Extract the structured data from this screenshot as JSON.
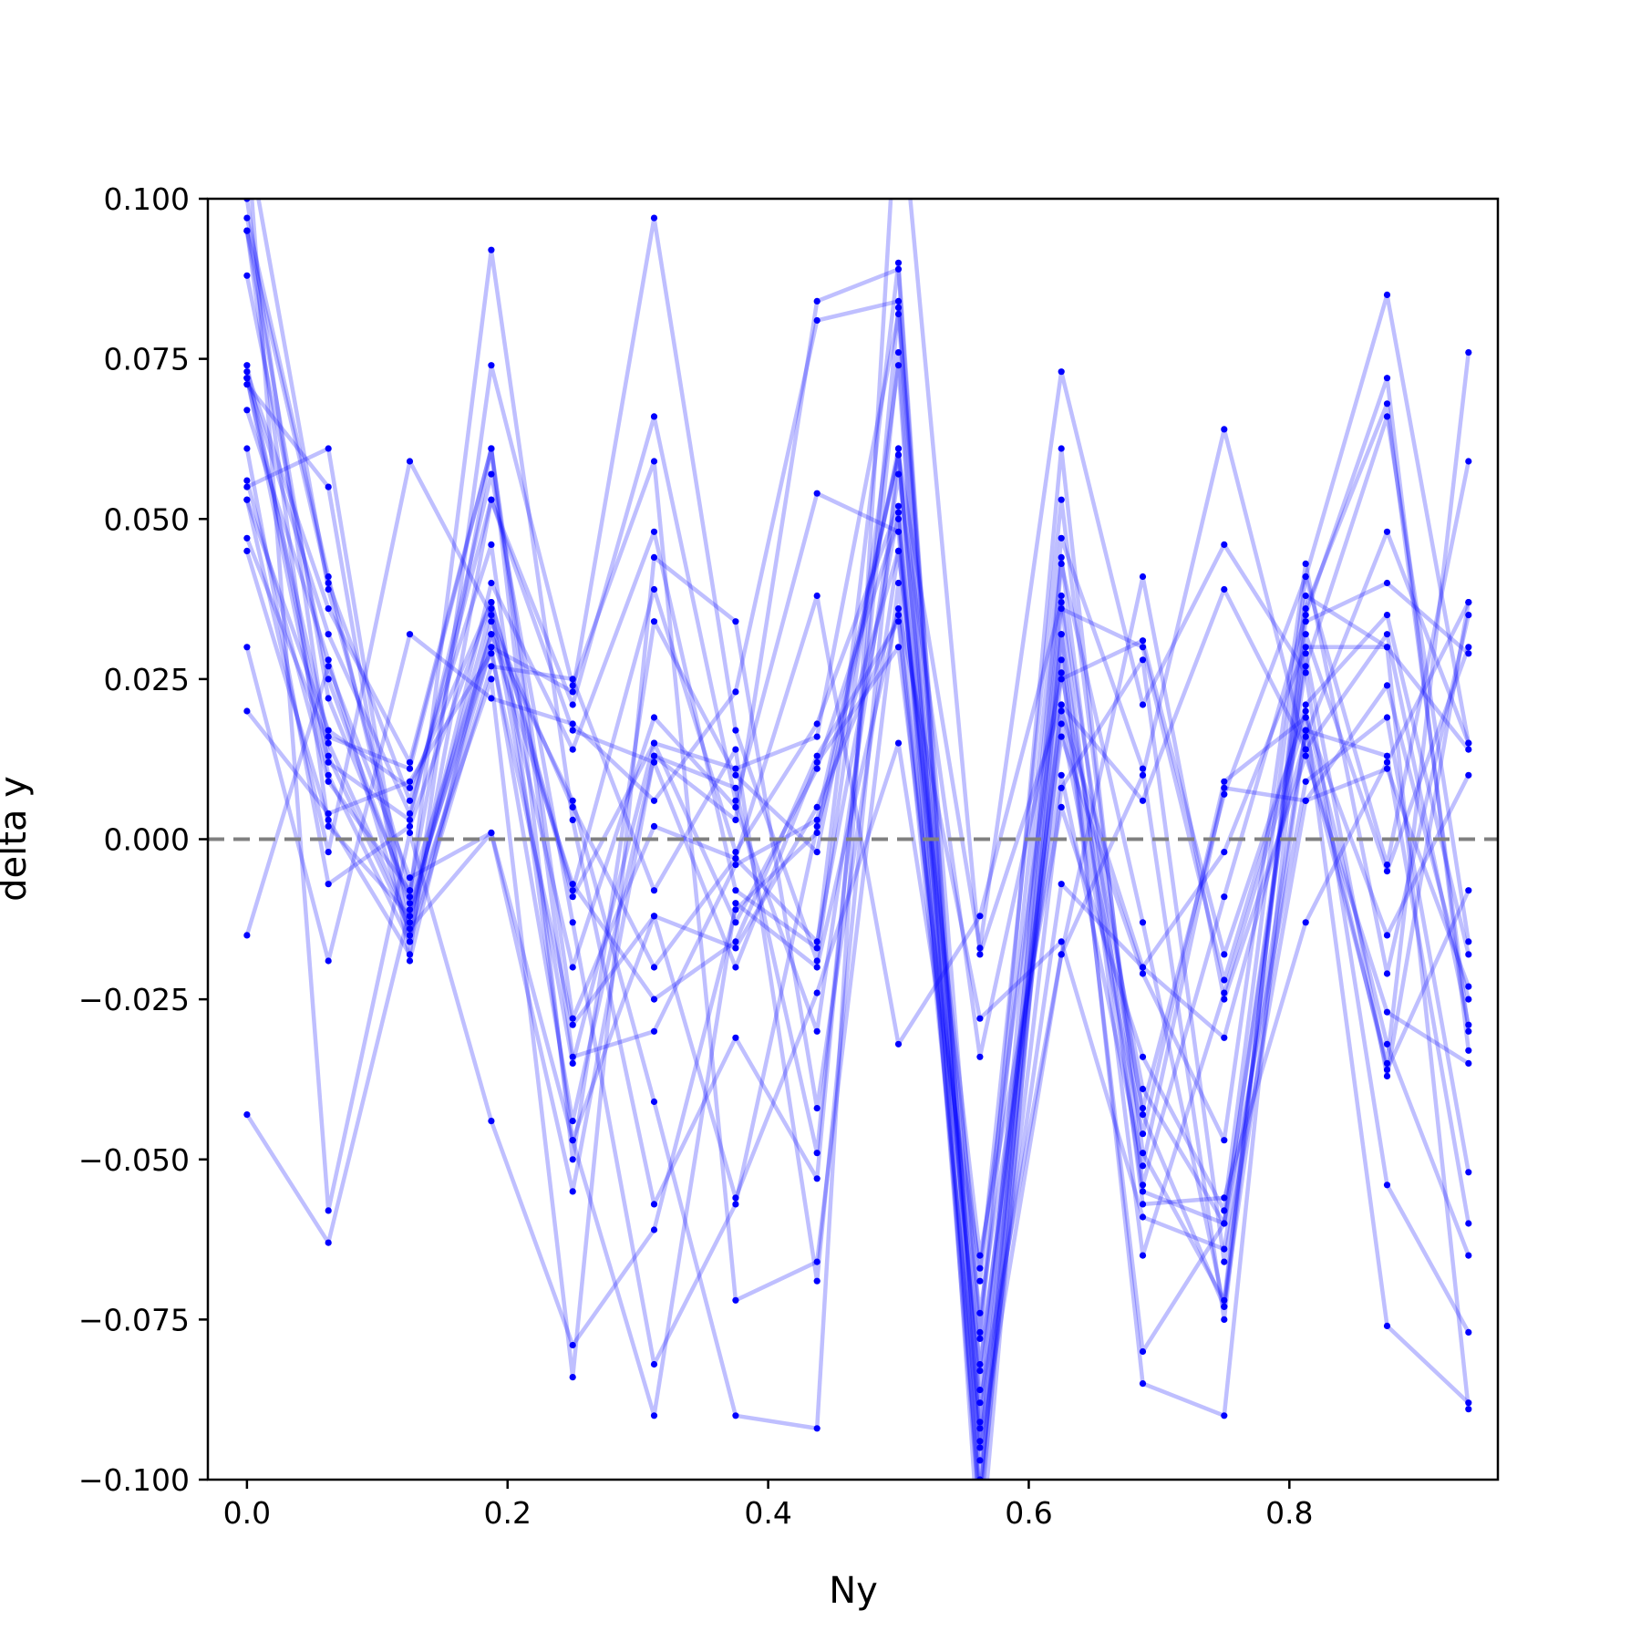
{
  "chart_data": {
    "type": "line",
    "xlabel": "Ny",
    "ylabel": "delta y",
    "xlim": [
      -0.03,
      0.96
    ],
    "ylim": [
      -0.1,
      0.1
    ],
    "x_ticks": [
      "0.0",
      "0.2",
      "0.4",
      "0.6",
      "0.8"
    ],
    "x_tick_values": [
      0.0,
      0.2,
      0.4,
      0.6,
      0.8
    ],
    "y_ticks": [
      "0.100",
      "0.075",
      "0.050",
      "0.025",
      "0.000",
      "−0.025",
      "−0.050",
      "−0.075",
      "−0.100"
    ],
    "y_tick_values": [
      0.1,
      0.075,
      0.05,
      0.025,
      0.0,
      -0.025,
      -0.05,
      -0.075,
      -0.1
    ],
    "reference_line": {
      "y": 0.0,
      "style": "dashed",
      "color": "#808080"
    },
    "grid": false,
    "line_color": "#0000ff",
    "line_alpha": 0.25,
    "marker_color": "#0000ff",
    "x": [
      0.0,
      0.0625,
      0.125,
      0.1875,
      0.25,
      0.3125,
      0.375,
      0.4375,
      0.5,
      0.5625,
      0.625,
      0.6875,
      0.75,
      0.8125,
      0.875,
      0.9375
    ],
    "series": [
      {
        "values": [
          0.097,
          0.041,
          -0.012,
          0.036,
          -0.035,
          0.015,
          0.011,
          0.016,
          0.082,
          -0.097,
          0.038,
          -0.043,
          -0.073,
          0.036,
          0.068,
          -0.03
        ]
      },
      {
        "values": [
          0.088,
          0.025,
          -0.01,
          0.03,
          0.023,
          0.097,
          0.017,
          -0.019,
          0.074,
          -0.113,
          0.032,
          -0.055,
          -0.06,
          0.027,
          0.066,
          -0.016
        ]
      },
      {
        "values": [
          0.073,
          0.036,
          0.012,
          0.061,
          -0.034,
          -0.03,
          -0.004,
          0.003,
          0.06,
          -0.078,
          0.047,
          0.011,
          -0.075,
          0.038,
          0.03,
          -0.089
        ]
      },
      {
        "values": [
          0.055,
          0.061,
          -0.016,
          0.053,
          0.021,
          0.066,
          0.006,
          0.054,
          0.048,
          -0.086,
          0.021,
          -0.042,
          0.007,
          0.041,
          -0.004,
          0.059
        ]
      },
      {
        "values": [
          0.053,
          0.017,
          0.008,
          0.037,
          -0.008,
          0.039,
          -0.002,
          0.018,
          0.052,
          -0.106,
          0.036,
          0.03,
          -0.022,
          0.021,
          0.035,
          -0.018
        ]
      },
      {
        "values": [
          0.047,
          0.015,
          -0.013,
          0.04,
          0.014,
          0.048,
          -0.008,
          -0.017,
          0.09,
          -0.094,
          -0.007,
          -0.02,
          -0.031,
          0.016,
          0.048,
          0.015
        ]
      },
      {
        "values": [
          0.03,
          -0.019,
          0.032,
          0.022,
          0.018,
          0.006,
          0.023,
          0.081,
          0.084,
          -0.091,
          0.044,
          -0.057,
          -0.056,
          -0.013,
          0.012,
          0.037
        ]
      },
      {
        "values": [
          0.02,
          0.004,
          0.009,
          0.029,
          -0.029,
          -0.012,
          -0.017,
          0.005,
          0.035,
          -0.082,
          0.016,
          -0.021,
          -0.047,
          0.043,
          -0.021,
          0.035
        ]
      },
      {
        "values": [
          -0.015,
          0.027,
          -0.006,
          0.001,
          -0.055,
          0.013,
          0.003,
          0.084,
          0.089,
          -0.1,
          0.008,
          0.028,
          -0.066,
          0.006,
          0.024,
          -0.025
        ]
      },
      {
        "values": [
          -0.043,
          -0.063,
          -0.011,
          0.032,
          -0.007,
          -0.025,
          -0.016,
          0.013,
          0.034,
          -0.092,
          0.018,
          -0.046,
          0.009,
          0.019,
          -0.015,
          0.01
        ]
      },
      {
        "values": [
          0.11,
          0.039,
          -0.008,
          0.061,
          -0.05,
          0.034,
          0.01,
          -0.002,
          0.061,
          -0.088,
          -0.018,
          0.041,
          -0.025,
          0.013,
          -0.027,
          -0.035
        ]
      },
      {
        "values": [
          0.095,
          0.022,
          -0.009,
          0.092,
          0.003,
          -0.057,
          -0.031,
          -0.053,
          0.083,
          -0.077,
          0.061,
          -0.054,
          -0.009,
          0.035,
          0.072,
          -0.033
        ]
      },
      {
        "values": [
          0.074,
          0.012,
          0.003,
          0.057,
          -0.013,
          -0.082,
          -0.057,
          0.002,
          0.045,
          -0.069,
          0.053,
          -0.049,
          -0.072,
          0.034,
          0.04,
          0.029
        ]
      },
      {
        "values": [
          0.067,
          0.028,
          -0.015,
          0.03,
          -0.044,
          0.013,
          0.008,
          -0.049,
          0.076,
          -0.106,
          0.026,
          -0.039,
          -0.06,
          0.009,
          0.019,
          -0.052
        ]
      },
      {
        "values": [
          0.072,
          0.01,
          -0.016,
          0.027,
          0.025,
          -0.008,
          0.014,
          -0.069,
          0.061,
          -0.103,
          0.032,
          -0.085,
          -0.09,
          0.032,
          -0.005,
          0.03
        ]
      },
      {
        "values": [
          0.061,
          -0.007,
          0.002,
          0.037,
          -0.009,
          0.015,
          -0.013,
          0.011,
          0.05,
          -0.103,
          0.043,
          -0.013,
          -0.073,
          0.017,
          0.013,
          -0.06
        ]
      },
      {
        "values": [
          0.056,
          0.009,
          -0.008,
          0.032,
          0.006,
          -0.041,
          -0.09,
          -0.092,
          0.12,
          -0.018,
          0.021,
          0.006,
          0.039,
          0.014,
          -0.035,
          0.076
        ]
      },
      {
        "values": [
          0.045,
          0.003,
          -0.018,
          0.074,
          0.024,
          0.059,
          -0.072,
          -0.066,
          0.04,
          -0.095,
          -0.018,
          0.01,
          0.064,
          0.014,
          0.032,
          -0.029
        ]
      },
      {
        "values": [
          0.095,
          0.002,
          -0.012,
          0.025,
          -0.084,
          0.044,
          0.034,
          -0.042,
          0.045,
          -0.065,
          0.005,
          -0.034,
          -0.058,
          0.041,
          0.085,
          0.015
        ]
      },
      {
        "values": [
          0.11,
          -0.058,
          0.001,
          -0.044,
          -0.079,
          -0.061,
          -0.011,
          0.001,
          0.06,
          -0.017,
          0.073,
          0.021,
          0.046,
          0.026,
          -0.054,
          -0.077
        ]
      },
      {
        "values": [
          0.1,
          0.013,
          -0.014,
          0.001,
          -0.047,
          -0.09,
          -0.01,
          -0.02,
          0.036,
          -0.028,
          -0.016,
          -0.059,
          -0.064,
          0.017,
          -0.036,
          -0.008
        ]
      },
      {
        "values": [
          0.053,
          -0.002,
          0.059,
          0.035,
          -0.02,
          0.019,
          0.005,
          -0.03,
          0.057,
          -0.034,
          0.025,
          0.031,
          -0.018,
          0.02,
          -0.032,
          -0.065
        ]
      },
      {
        "values": [
          0.071,
          0.055,
          -0.019,
          0.034,
          0.005,
          -0.02,
          -0.003,
          0.038,
          -0.032,
          -0.012,
          0.037,
          -0.065,
          -0.024,
          0.019,
          -0.076,
          -0.088
        ]
      },
      {
        "values": [
          0.095,
          0.04,
          0.006,
          0.046,
          -0.047,
          -0.012,
          -0.056,
          -0.024,
          0.015,
          -0.067,
          0.028,
          -0.08,
          -0.06,
          0.029,
          -0.037,
          0.037
        ]
      },
      {
        "values": [
          0.072,
          0.032,
          0.004,
          0.053,
          0.017,
          0.012,
          -0.02,
          0.012,
          0.03,
          -0.074,
          0.01,
          -0.051,
          0.008,
          0.006,
          0.011,
          -0.023
        ]
      },
      {
        "values": [
          0.072,
          0.016,
          0.011,
          0.061,
          -0.028,
          0.002,
          -0.003,
          -0.016,
          0.051,
          -0.083,
          0.02,
          -0.02,
          -0.002,
          0.03,
          0.03,
          0.014
        ]
      }
    ]
  }
}
